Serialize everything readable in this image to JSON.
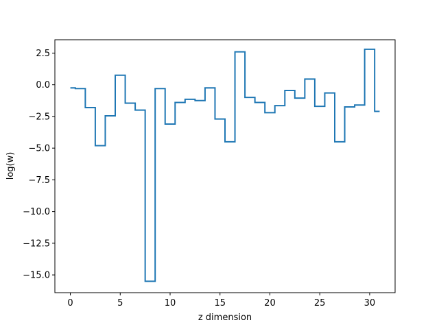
{
  "chart_data": {
    "type": "line",
    "drawstyle": "steps-mid",
    "title": "",
    "xlabel": "z dimension",
    "ylabel": "log(w)",
    "xlim": [
      -1.55,
      32.55
    ],
    "ylim": [
      -16.4,
      3.55
    ],
    "grid": false,
    "line_color": "#1f77b4",
    "x_ticks": [
      0,
      5,
      10,
      15,
      20,
      25,
      30
    ],
    "x_tick_labels": [
      "0",
      "5",
      "10",
      "15",
      "20",
      "25",
      "30"
    ],
    "y_ticks": [
      2.5,
      0.0,
      -2.5,
      -5.0,
      -7.5,
      -10.0,
      -12.5,
      -15.0
    ],
    "y_tick_labels": [
      "2.5",
      "0.0",
      "−2.5",
      "−5.0",
      "−7.5",
      "−10.0",
      "−12.5",
      "−15.0"
    ],
    "series": [
      {
        "x": [
          0,
          1,
          2,
          3,
          4,
          5,
          6,
          7,
          8,
          9,
          10,
          11,
          12,
          13,
          14,
          15,
          16,
          17,
          18,
          19,
          20,
          21,
          22,
          23,
          24,
          25,
          26,
          27,
          28,
          29,
          30,
          31
        ],
        "values": [
          -0.25,
          -0.3,
          -1.8,
          -4.8,
          -2.45,
          0.75,
          -1.45,
          -2.0,
          -15.5,
          -0.3,
          -3.1,
          -1.4,
          -1.15,
          -1.25,
          -0.25,
          -2.7,
          -4.5,
          2.6,
          -1.0,
          -1.4,
          -2.2,
          -1.65,
          -0.45,
          -1.05,
          0.45,
          -1.7,
          -0.65,
          -4.5,
          -1.75,
          -1.6,
          2.8,
          -2.1
        ]
      }
    ]
  }
}
